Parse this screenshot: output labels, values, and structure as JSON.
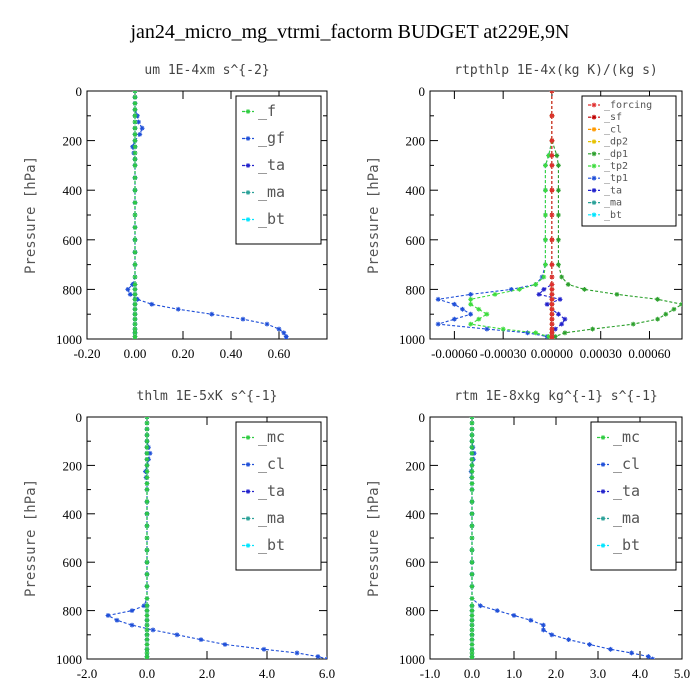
{
  "figure": {
    "title": "jan24_micro_mg_vtrmi_factorm  BUDGET at229E,9N",
    "ylabel": "Pressure [hPa]"
  },
  "chart_data": [
    {
      "type": "line",
      "title": "um   1E-4xm s^{-2}",
      "xlim": [
        -0.2,
        0.8
      ],
      "ylim": [
        1000,
        0
      ],
      "xticks": [
        "-0.20",
        "0.00",
        "0.20",
        "0.40",
        "0.60"
      ],
      "xtick_values": [
        -0.2,
        0.0,
        0.2,
        0.4,
        0.6
      ],
      "yticks": [
        "0",
        "200",
        "400",
        "600",
        "800",
        "1000"
      ],
      "ytick_values": [
        0,
        200,
        400,
        600,
        800,
        1000
      ],
      "legend": {
        "position": "top-right",
        "size": "large",
        "entries": [
          "_f",
          "_gf",
          "_ta",
          "_ma",
          "_bt"
        ]
      },
      "y": [
        0,
        25,
        50,
        75,
        100,
        125,
        150,
        175,
        200,
        225,
        250,
        275,
        300,
        350,
        400,
        450,
        500,
        550,
        600,
        650,
        700,
        750,
        780,
        800,
        820,
        840,
        860,
        880,
        900,
        920,
        940,
        960,
        975,
        990,
        1000
      ],
      "series": [
        {
          "name": "_f",
          "color": "#2ecc40",
          "values": [
            0,
            0,
            0,
            0,
            0,
            0,
            0,
            0,
            0,
            0,
            0,
            0,
            0,
            0,
            0,
            0,
            0,
            0,
            0,
            0,
            0,
            0,
            0,
            0,
            0,
            0,
            0,
            0,
            0,
            0,
            0,
            0,
            0,
            0,
            0
          ]
        },
        {
          "name": "_gf",
          "color": "#1f4fd8",
          "values": [
            0,
            0,
            0,
            0,
            0.01,
            0.015,
            0.03,
            0.02,
            0.0,
            -0.01,
            -0.005,
            0,
            0,
            0,
            0,
            0,
            0,
            0,
            0,
            0,
            0,
            0,
            -0.01,
            -0.03,
            -0.02,
            0.01,
            0.07,
            0.18,
            0.32,
            0.45,
            0.55,
            0.6,
            0.62,
            0.63,
            0.63
          ]
        },
        {
          "name": "_ta",
          "color": "#2222cc",
          "values": [
            0,
            0,
            0,
            0,
            0,
            0,
            0,
            0,
            0,
            0,
            0,
            0,
            0,
            0,
            0,
            0,
            0,
            0,
            0,
            0,
            0,
            0,
            0,
            0,
            0,
            0,
            0,
            0,
            0,
            0,
            0,
            0,
            0,
            0,
            0
          ]
        },
        {
          "name": "_ma",
          "color": "#2aa198",
          "values": [
            0,
            0,
            0,
            0,
            0,
            0,
            0,
            0,
            0,
            0,
            0,
            0,
            0,
            0,
            0,
            0,
            0,
            0,
            0,
            0,
            0,
            0,
            0,
            0,
            0,
            0,
            0,
            0,
            0,
            0,
            0,
            0,
            0,
            0,
            0
          ]
        },
        {
          "name": "_bt",
          "color": "#00e5ff",
          "values": [
            0,
            0,
            0,
            0,
            0,
            0,
            0,
            0,
            0,
            0,
            0,
            0,
            0,
            0,
            0,
            0,
            0,
            0,
            0,
            0,
            0,
            0,
            0,
            0,
            0,
            0,
            0,
            0,
            0,
            0,
            0,
            0,
            0,
            0,
            0
          ]
        }
      ]
    },
    {
      "type": "line",
      "title": "rtpthlp   1E-4x(kg K)/(kg s)",
      "xlim": [
        -0.00075,
        0.0008
      ],
      "ylim": [
        1000,
        0
      ],
      "xticks": [
        "-0.00060",
        "-0.00030",
        "0.00000",
        "0.00030",
        "0.00060"
      ],
      "xtick_values": [
        -0.0006,
        -0.0003,
        0.0,
        0.0003,
        0.0006
      ],
      "yticks": [
        "0",
        "200",
        "400",
        "600",
        "800",
        "1000"
      ],
      "ytick_values": [
        0,
        200,
        400,
        600,
        800,
        1000
      ],
      "legend": {
        "position": "top-right",
        "size": "small",
        "entries": [
          "_forcing",
          "_sf",
          "_cl",
          "_dp2",
          "_dp1",
          "_tp2",
          "_tp1",
          "_ta",
          "_ma",
          "_bt"
        ]
      },
      "y": [
        0,
        100,
        200,
        260,
        300,
        400,
        500,
        600,
        700,
        750,
        780,
        800,
        820,
        840,
        860,
        880,
        900,
        920,
        940,
        960,
        975,
        990,
        1000
      ],
      "series": [
        {
          "name": "_forcing",
          "color": "#e03030",
          "values": [
            0,
            0,
            0,
            0,
            0,
            0,
            0,
            0,
            0,
            0,
            0,
            0,
            0,
            0,
            0,
            0,
            0,
            0,
            0,
            0,
            0,
            0,
            0
          ]
        },
        {
          "name": "_sf",
          "color": "#c00000",
          "values": [
            0,
            0,
            0,
            0,
            0,
            0,
            0,
            0,
            0,
            0,
            0,
            0,
            0,
            0,
            0,
            0,
            0,
            0,
            0,
            0,
            0,
            0,
            0
          ]
        },
        {
          "name": "_cl",
          "color": "#ff9900",
          "values": [
            0,
            0,
            0,
            0,
            0,
            0,
            0,
            0,
            0,
            0,
            0,
            0,
            0,
            0,
            0,
            0,
            0,
            0,
            0,
            0,
            0,
            0,
            0
          ]
        },
        {
          "name": "_dp2",
          "color": "#e6c200",
          "values": [
            0,
            0,
            0,
            0,
            0,
            0,
            0,
            0,
            0,
            0,
            0,
            0,
            0,
            0,
            0,
            0,
            0,
            0,
            0,
            0,
            0,
            0,
            0
          ]
        },
        {
          "name": "_dp1",
          "color": "#2ca02c",
          "values": [
            0,
            0,
            0,
            3e-05,
            4e-05,
            4e-05,
            4e-05,
            4e-05,
            4e-05,
            6e-05,
            0.0001,
            0.0002,
            0.0004,
            0.00065,
            0.0008,
            0.00075,
            0.0007,
            0.00065,
            0.0005,
            0.00025,
            8e-05,
            2e-05,
            0
          ]
        },
        {
          "name": "_tp2",
          "color": "#3ddc3d",
          "values": [
            0,
            0,
            0,
            -2e-05,
            -4e-05,
            -4e-05,
            -4e-05,
            -4e-05,
            -4e-05,
            -5e-05,
            -0.0001,
            -0.0002,
            -0.00035,
            -0.0005,
            -0.0005,
            -0.00045,
            -0.0004,
            -0.00045,
            -0.0005,
            -0.0003,
            -0.0001,
            -2e-05,
            0
          ]
        },
        {
          "name": "_tp1",
          "color": "#1f4fd8",
          "values": [
            0,
            0,
            0,
            -2e-05,
            -4e-05,
            -4e-05,
            -4e-05,
            -4e-05,
            -4e-05,
            -6e-05,
            -0.0001,
            -0.00025,
            -0.0005,
            -0.0007,
            -0.0006,
            -0.00055,
            -0.0005,
            -0.0006,
            -0.0007,
            -0.0004,
            -0.00015,
            -3e-05,
            0
          ]
        },
        {
          "name": "_ta",
          "color": "#2222cc",
          "values": [
            0,
            0,
            0,
            0,
            0,
            0,
            0,
            0,
            0,
            0,
            0,
            -5e-05,
            -8e-05,
            5e-05,
            -3e-05,
            0,
            4e-05,
            8e-05,
            6e-05,
            2e-05,
            0,
            0,
            0
          ]
        },
        {
          "name": "_ma",
          "color": "#2aa198",
          "values": [
            0,
            0,
            0,
            0,
            0,
            0,
            0,
            0,
            0,
            0,
            0,
            0,
            0,
            0,
            0,
            0,
            0,
            0,
            0,
            0,
            0,
            0,
            0
          ]
        },
        {
          "name": "_bt",
          "color": "#00e5ff",
          "values": [
            0,
            0,
            0,
            0,
            0,
            0,
            0,
            0,
            0,
            0,
            0,
            0,
            0,
            0,
            0,
            0,
            0,
            0,
            0,
            0,
            0,
            0,
            0
          ]
        }
      ]
    },
    {
      "type": "line",
      "title": "thlm   1E-5xK s^{-1}",
      "xlim": [
        -2.0,
        6.0
      ],
      "ylim": [
        1000,
        0
      ],
      "xticks": [
        "-2.0",
        "0.0",
        "2.0",
        "4.0",
        "6.0"
      ],
      "xtick_values": [
        -2.0,
        0.0,
        2.0,
        4.0,
        6.0
      ],
      "yticks": [
        "0",
        "200",
        "400",
        "600",
        "800",
        "1000"
      ],
      "ytick_values": [
        0,
        200,
        400,
        600,
        800,
        1000
      ],
      "legend": {
        "position": "top-right",
        "size": "large",
        "entries": [
          "_mc",
          "_cl",
          "_ta",
          "_ma",
          "_bt"
        ]
      },
      "y": [
        0,
        25,
        50,
        75,
        100,
        125,
        150,
        175,
        200,
        225,
        250,
        275,
        300,
        350,
        400,
        450,
        500,
        550,
        600,
        650,
        700,
        750,
        780,
        800,
        820,
        840,
        860,
        880,
        900,
        920,
        940,
        960,
        975,
        990,
        1000
      ],
      "series": [
        {
          "name": "_mc",
          "color": "#2ecc40",
          "values": [
            0,
            0,
            0,
            0,
            0,
            0,
            0,
            0,
            0,
            0,
            0,
            0,
            0,
            0,
            0,
            0,
            0,
            0,
            0,
            0,
            0,
            0,
            0,
            0,
            0,
            0,
            0,
            0,
            0,
            0,
            0,
            0,
            0,
            0,
            0
          ]
        },
        {
          "name": "_cl",
          "color": "#1f4fd8",
          "values": [
            0,
            0,
            0,
            0,
            0,
            0.05,
            0.1,
            0.05,
            0,
            -0.05,
            -0.03,
            0,
            0,
            0,
            0,
            0,
            0,
            0,
            0,
            0,
            0,
            0,
            -0.1,
            -0.5,
            -1.3,
            -1.0,
            -0.5,
            0.2,
            1.0,
            1.8,
            2.6,
            3.9,
            5.0,
            5.7,
            6.0
          ]
        },
        {
          "name": "_ta",
          "color": "#2222cc",
          "values": [
            0,
            0,
            0,
            0,
            0,
            0,
            0,
            0,
            0,
            0,
            0,
            0,
            0,
            0,
            0,
            0,
            0,
            0,
            0,
            0,
            0,
            0,
            0,
            0,
            0,
            0,
            0,
            0,
            0,
            0,
            0,
            0,
            0,
            0,
            0
          ]
        },
        {
          "name": "_ma",
          "color": "#2aa198",
          "values": [
            0,
            0,
            0,
            0,
            0,
            0,
            0,
            0,
            0,
            0,
            0,
            0,
            0,
            0,
            0,
            0,
            0,
            0,
            0,
            0,
            0,
            0,
            0,
            0,
            0,
            0,
            0,
            0,
            0,
            0,
            0,
            0,
            0,
            0,
            0
          ]
        },
        {
          "name": "_bt",
          "color": "#00e5ff",
          "values": [
            0,
            0,
            0,
            0,
            0,
            0,
            0,
            0,
            0,
            0,
            0,
            0,
            0,
            0,
            0,
            0,
            0,
            0,
            0,
            0,
            0,
            0,
            0,
            0,
            0,
            0,
            0,
            0,
            0,
            0,
            0,
            0,
            0,
            0,
            0
          ]
        }
      ]
    },
    {
      "type": "line",
      "title": "rtm   1E-8xkg kg^{-1} s^{-1}",
      "xlim": [
        -1.0,
        5.0
      ],
      "ylim": [
        1000,
        0
      ],
      "xticks": [
        "-1.0",
        "0.0",
        "1.0",
        "2.0",
        "3.0",
        "4.0",
        "5.0"
      ],
      "xtick_values": [
        -1.0,
        0.0,
        1.0,
        2.0,
        3.0,
        4.0,
        5.0
      ],
      "yticks": [
        "0",
        "200",
        "400",
        "600",
        "800",
        "1000"
      ],
      "ytick_values": [
        0,
        200,
        400,
        600,
        800,
        1000
      ],
      "legend": {
        "position": "top-right",
        "size": "large",
        "entries": [
          "_mc",
          "_cl",
          "_ta",
          "_ma",
          "_bt"
        ]
      },
      "y": [
        0,
        25,
        50,
        75,
        100,
        125,
        150,
        175,
        200,
        225,
        250,
        275,
        300,
        350,
        400,
        450,
        500,
        550,
        600,
        650,
        700,
        750,
        780,
        800,
        820,
        840,
        860,
        880,
        900,
        920,
        940,
        960,
        975,
        990,
        1000
      ],
      "series": [
        {
          "name": "_mc",
          "color": "#2ecc40",
          "values": [
            0,
            0,
            0,
            0,
            0,
            0,
            0,
            0,
            0,
            0,
            0,
            0,
            0,
            0,
            0,
            0,
            0,
            0,
            0,
            0,
            0,
            0,
            0,
            0,
            0,
            0,
            0,
            0,
            0,
            0,
            0,
            0,
            0,
            0,
            0
          ]
        },
        {
          "name": "_cl",
          "color": "#1f4fd8",
          "values": [
            0,
            0,
            0,
            0,
            0,
            0.02,
            0.05,
            0.03,
            0,
            -0.02,
            -0.01,
            0,
            0,
            0,
            0,
            0,
            0,
            0,
            0,
            0,
            0,
            0,
            0.2,
            0.6,
            1.0,
            1.4,
            1.7,
            1.7,
            1.9,
            2.3,
            2.8,
            3.3,
            3.8,
            4.2,
            4.3
          ]
        },
        {
          "name": "_ta",
          "color": "#2222cc",
          "values": [
            0,
            0,
            0,
            0,
            0,
            0,
            0,
            0,
            0,
            0,
            0,
            0,
            0,
            0,
            0,
            0,
            0,
            0,
            0,
            0,
            0,
            0,
            0,
            0,
            0,
            0,
            0,
            0,
            0,
            0,
            0,
            0,
            0,
            0,
            0
          ]
        },
        {
          "name": "_ma",
          "color": "#2aa198",
          "values": [
            0,
            0,
            0,
            0,
            0,
            0,
            0,
            0,
            0,
            0,
            0,
            0,
            0,
            0,
            0,
            0,
            0,
            0,
            0,
            0,
            0,
            0,
            0,
            0,
            0,
            0,
            0,
            0,
            0,
            0,
            0,
            0,
            0,
            0,
            0
          ]
        },
        {
          "name": "_bt",
          "color": "#00e5ff",
          "values": [
            0,
            0,
            0,
            0,
            0,
            0,
            0,
            0,
            0,
            0,
            0,
            0,
            0,
            0,
            0,
            0,
            0,
            0,
            0,
            0,
            0,
            0,
            0,
            0,
            0,
            0,
            0,
            0,
            0,
            0,
            0,
            0,
            0,
            0,
            0
          ]
        }
      ]
    }
  ]
}
